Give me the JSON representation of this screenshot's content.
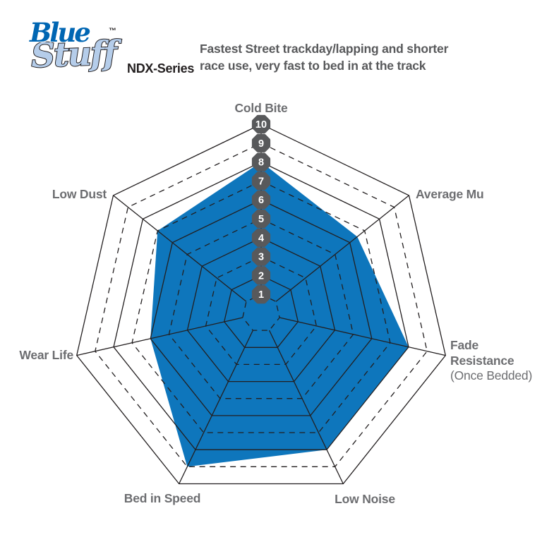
{
  "header": {
    "logo": {
      "word1": "Blue",
      "word2": "Stuff",
      "tm": "™"
    },
    "series_label": "NDX-Series",
    "description": [
      "Fastest Street trackday/lapping and shorter",
      "race use, very fast to bed in at the track"
    ]
  },
  "colors": {
    "series_fill": "#0e76bc",
    "grid_line": "#231f20",
    "scale_badge": "#58595b",
    "badge_text": "#ffffff",
    "axis_label": "#6d6e71",
    "description_text": "#58595b",
    "logo_blue": "#0066b3",
    "logo_light_blue": "#b5cdea"
  },
  "chart_data": {
    "type": "radar",
    "title": "BlueStuff NDX-Series brake pad performance",
    "axes": [
      "Cold Bite",
      "Average Mu",
      "Fade Resistance (Once Bedded)",
      "Low Noise",
      "Bed in Speed",
      "Wear Life",
      "Low Dust"
    ],
    "values": [
      8,
      6.5,
      8,
      8,
      9,
      6,
      7
    ],
    "scale": {
      "min": 0,
      "max": 10,
      "rings": [
        1,
        2,
        3,
        4,
        5,
        6,
        7,
        8,
        9,
        10
      ],
      "ring_style": "even rings solid, odd rings dashed",
      "ring_labels_on_axis": "Cold Bite"
    },
    "legend": "none",
    "axis_display": {
      "cold_bite": "Cold Bite",
      "average_mu": "Average Mu",
      "fade_line1": "Fade",
      "fade_line2": "Resistance",
      "fade_line3": "(Once Bedded)",
      "low_noise": "Low Noise",
      "bed_in_speed": "Bed in Speed",
      "wear_life": "Wear Life",
      "low_dust": "Low Dust"
    }
  }
}
